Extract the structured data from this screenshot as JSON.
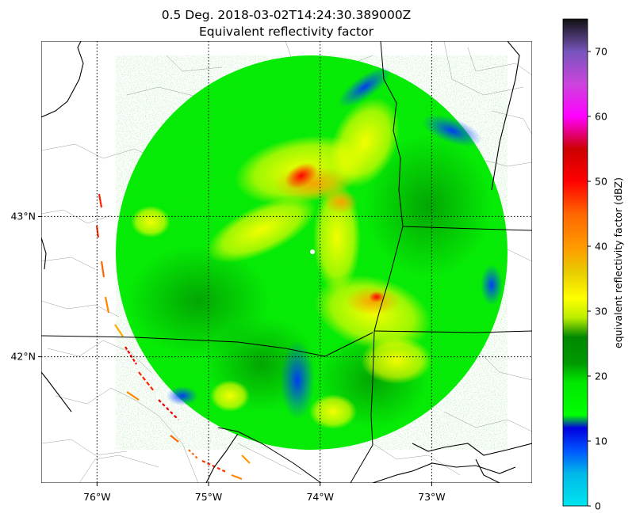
{
  "chart_data": {
    "type": "heatmap",
    "title": "0.5 Deg. 2018-03-02T14:24:30.389000Z",
    "subtitle": "Equivalent reflectivity factor",
    "x_ticks": [
      {
        "lon": -76,
        "label": "76°W"
      },
      {
        "lon": -75,
        "label": "75°W"
      },
      {
        "lon": -74,
        "label": "74°W"
      },
      {
        "lon": -73,
        "label": "73°W"
      }
    ],
    "y_ticks": [
      {
        "lat": 42,
        "label": "42°N"
      },
      {
        "lat": 43,
        "label": "43°N"
      }
    ],
    "xlim": [
      -76.5,
      -72.1
    ],
    "ylim": [
      41.1,
      44.25
    ],
    "grid": true,
    "radar_site": {
      "lon": -74.06,
      "lat": 42.59
    },
    "radar_range_deg": [
      1.76,
      1.39
    ],
    "colorbar": {
      "label": "equivalent reflectivity factor (dBZ)",
      "vmin": 0,
      "vmax": 75,
      "ticks": [
        0,
        10,
        20,
        30,
        40,
        50,
        60,
        70
      ],
      "colors": [
        {
          "v": 0,
          "c": "#00e5ee"
        },
        {
          "v": 5,
          "c": "#00b8e8"
        },
        {
          "v": 8.5,
          "c": "#0055ff"
        },
        {
          "v": 12,
          "c": "#0000e0"
        },
        {
          "v": 14,
          "c": "#00ff00"
        },
        {
          "v": 19,
          "c": "#00e800"
        },
        {
          "v": 22,
          "c": "#009900"
        },
        {
          "v": 26,
          "c": "#008800"
        },
        {
          "v": 29,
          "c": "#bbee00"
        },
        {
          "v": 32,
          "c": "#ffff00"
        },
        {
          "v": 36,
          "c": "#e8cc00"
        },
        {
          "v": 40,
          "c": "#ff9900"
        },
        {
          "v": 45,
          "c": "#ff6600"
        },
        {
          "v": 50,
          "c": "#ff0000"
        },
        {
          "v": 55,
          "c": "#cc0000"
        },
        {
          "v": 60,
          "c": "#ff00ff"
        },
        {
          "v": 65,
          "c": "#cc44dd"
        },
        {
          "v": 70,
          "c": "#7755bb"
        },
        {
          "v": 75,
          "c": "#111111"
        }
      ]
    },
    "echo_cores": [
      {
        "lon": -74.23,
        "lat": 43.05,
        "dbz": 48
      },
      {
        "lon": -73.45,
        "lat": 42.27,
        "dbz": 44
      },
      {
        "lon": -73.95,
        "lat": 42.85,
        "dbz": 40
      },
      {
        "lon": -74.4,
        "lat": 42.9,
        "dbz": 35
      },
      {
        "lon": -73.6,
        "lat": 42.15,
        "dbz": 33
      },
      {
        "lon": -73.7,
        "lat": 43.3,
        "dbz": 33
      },
      {
        "lon": -73.75,
        "lat": 41.55,
        "dbz": 32
      },
      {
        "lon": -74.75,
        "lat": 42.55,
        "dbz": 30
      },
      {
        "lon": -73.5,
        "lat": 43.5,
        "dbz": 12
      },
      {
        "lon": -72.85,
        "lat": 43.45,
        "dbz": 11
      },
      {
        "lon": -74.1,
        "lat": 41.55,
        "dbz": 10
      }
    ]
  }
}
